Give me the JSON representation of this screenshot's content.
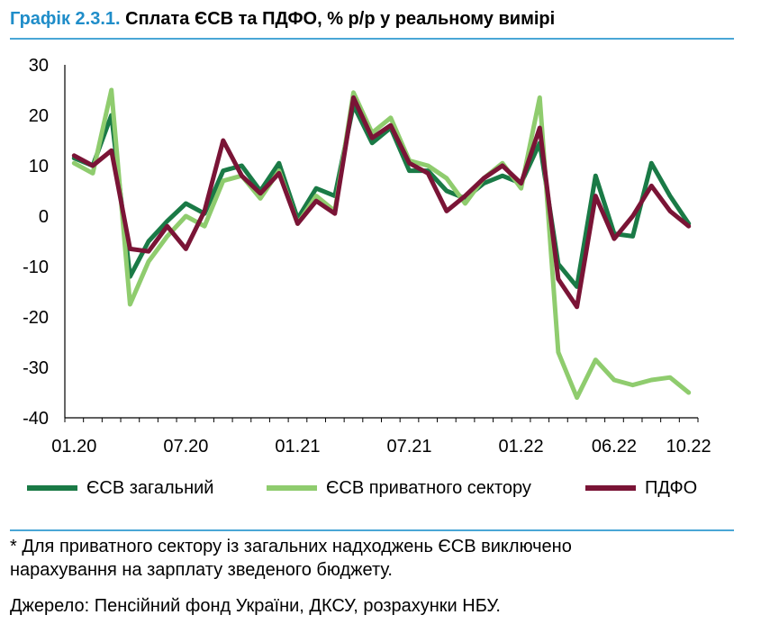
{
  "header": {
    "prefix": "Графік 2.3.1.",
    "title": "Сплата ЄСВ та ПДФО, % р/р у реальному вимірі"
  },
  "footnote": {
    "line1": "* Для приватного сектору із загальних надходжень ЄСВ виключено",
    "line2": "нарахування на зарплату зведеного бюджету.",
    "source": "Джерело: Пенсійний фонд України, ДКСУ, розрахунки НБУ."
  },
  "chart_data": {
    "type": "line",
    "x": [
      "01.20",
      "02.20",
      "03.20",
      "04.20",
      "05.20",
      "06.20",
      "07.20",
      "08.20",
      "09.20",
      "10.20",
      "11.20",
      "12.20",
      "01.21",
      "02.21",
      "03.21",
      "04.21",
      "05.21",
      "06.21",
      "07.21",
      "08.21",
      "09.21",
      "10.21",
      "11.21",
      "12.21",
      "01.22",
      "02.22",
      "03.22",
      "04.22",
      "05.22",
      "06.22",
      "07.22",
      "08.22",
      "09.22",
      "10.22"
    ],
    "x_tick_labels": [
      "01.20",
      "07.20",
      "01.21",
      "07.21",
      "01.22",
      "06.22",
      "10.22"
    ],
    "y_ticks": [
      30,
      20,
      10,
      0,
      -10,
      -20,
      -30,
      -40
    ],
    "ylim": [
      -40,
      30
    ],
    "legend_position": "bottom",
    "series": [
      {
        "name": "ЄСВ загальний",
        "color": "#1a7a46",
        "values": [
          11.5,
          10,
          20,
          -12,
          -5,
          -1,
          2.5,
          0.5,
          9,
          10,
          5,
          10.5,
          -0.5,
          5.5,
          4,
          22,
          14.5,
          17.5,
          9,
          9,
          5,
          3.5,
          6.5,
          8,
          6.5,
          14.5,
          -9.5,
          -14,
          8,
          -3.5,
          -4,
          10.5,
          4,
          -1.5
        ]
      },
      {
        "name": "ЄСВ приватного сектору",
        "color": "#8fcc6e",
        "values": [
          10.5,
          8.5,
          25,
          -17.5,
          -9,
          -4,
          0,
          -2,
          7,
          8,
          3.5,
          9,
          -1.5,
          4,
          1,
          24.5,
          16.5,
          19.5,
          11,
          10,
          7.5,
          2.5,
          7.5,
          10.5,
          5.5,
          23.5,
          -27,
          -36,
          -28.5,
          -32.5,
          -33.5,
          -32.5,
          -32,
          -35
        ]
      },
      {
        "name": "ПДФО",
        "color": "#7a1436",
        "values": [
          12,
          10,
          13,
          -6.5,
          -7,
          -2,
          -6.5,
          1,
          15,
          8,
          4.5,
          8.5,
          -1.5,
          3,
          0.5,
          23.5,
          15.5,
          18,
          10.5,
          8.5,
          1,
          4,
          7.5,
          10,
          6.5,
          17.5,
          -12.5,
          -18,
          4,
          -4.5,
          0,
          6,
          1,
          -2
        ]
      }
    ]
  }
}
